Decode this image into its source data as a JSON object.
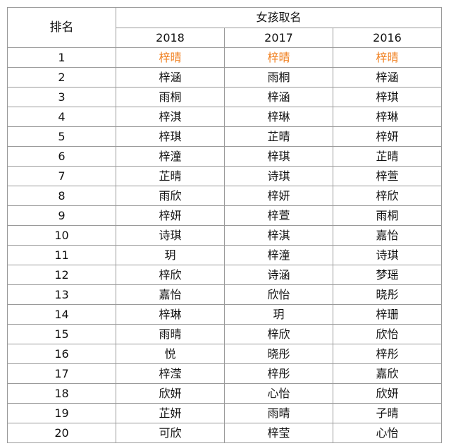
{
  "table": {
    "rank_header": "排名",
    "group_header": "女孩取名",
    "years": [
      "2018",
      "2017",
      "2016"
    ],
    "highlight_color": "#f07f1e",
    "rows": [
      {
        "rank": "1",
        "names": [
          "梓晴",
          "梓晴",
          "梓晴"
        ]
      },
      {
        "rank": "2",
        "names": [
          "梓涵",
          "雨桐",
          "梓涵"
        ]
      },
      {
        "rank": "3",
        "names": [
          "雨桐",
          "梓涵",
          "梓琪"
        ]
      },
      {
        "rank": "4",
        "names": [
          "梓淇",
          "梓琳",
          "梓琳"
        ]
      },
      {
        "rank": "5",
        "names": [
          "梓琪",
          "芷晴",
          "梓妍"
        ]
      },
      {
        "rank": "6",
        "names": [
          "梓潼",
          "梓琪",
          "芷晴"
        ]
      },
      {
        "rank": "7",
        "names": [
          "芷晴",
          "诗琪",
          "梓萱"
        ]
      },
      {
        "rank": "8",
        "names": [
          "雨欣",
          "梓妍",
          "梓欣"
        ]
      },
      {
        "rank": "9",
        "names": [
          "梓妍",
          "梓萱",
          "雨桐"
        ]
      },
      {
        "rank": "10",
        "names": [
          "诗琪",
          "梓淇",
          "嘉怡"
        ]
      },
      {
        "rank": "11",
        "names": [
          "玥",
          "梓潼",
          "诗琪"
        ]
      },
      {
        "rank": "12",
        "names": [
          "梓欣",
          "诗涵",
          "梦瑶"
        ]
      },
      {
        "rank": "13",
        "names": [
          "嘉怡",
          "欣怡",
          "晓彤"
        ]
      },
      {
        "rank": "14",
        "names": [
          "梓琳",
          "玥",
          "梓珊"
        ]
      },
      {
        "rank": "15",
        "names": [
          "雨晴",
          "梓欣",
          "欣怡"
        ]
      },
      {
        "rank": "16",
        "names": [
          "悦",
          "晓彤",
          "梓彤"
        ]
      },
      {
        "rank": "17",
        "names": [
          "梓滢",
          "梓彤",
          "嘉欣"
        ]
      },
      {
        "rank": "18",
        "names": [
          "欣妍",
          "心怡",
          "欣妍"
        ]
      },
      {
        "rank": "19",
        "names": [
          "芷妍",
          "雨晴",
          "子晴"
        ]
      },
      {
        "rank": "20",
        "names": [
          "可欣",
          "梓莹",
          "心怡"
        ]
      }
    ]
  }
}
